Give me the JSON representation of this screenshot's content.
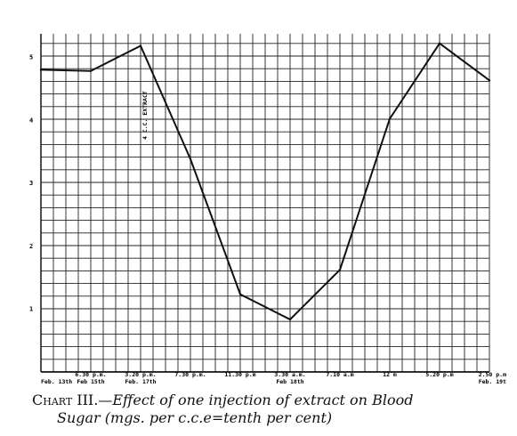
{
  "chart_data": {
    "type": "line",
    "title": "",
    "xlabel": "",
    "ylabel": "",
    "ylim": [
      0,
      5.5
    ],
    "y_ticks": [
      1,
      2,
      3,
      4,
      5
    ],
    "x_tick_labels": [
      {
        "top": "",
        "bottom": "Feb. 13th"
      },
      {
        "top": "6.30 p.m.",
        "bottom": "Feb 15th"
      },
      {
        "top": "3.20 p.m.",
        "bottom": "Feb. 17th"
      },
      {
        "top": "7.30 p.m.",
        "bottom": ""
      },
      {
        "top": "11.30 p.m",
        "bottom": ""
      },
      {
        "top": "3.30 a.m.",
        "bottom": "Feb 18th"
      },
      {
        "top": "7.10 a.m",
        "bottom": ""
      },
      {
        "top": "12 m",
        "bottom": ""
      },
      {
        "top": "5.20 p.m",
        "bottom": ""
      },
      {
        "top": "2.50 p.m",
        "bottom": "Feb. 19t"
      }
    ],
    "series": [
      {
        "values": [
          4.8,
          4.78,
          5.18,
          3.38,
          1.23,
          0.83,
          1.62,
          4.02,
          5.22,
          4.63
        ]
      }
    ],
    "annotation": "4 C.C. EXTRACT",
    "grid": true
  },
  "caption": {
    "label": "Chart III.",
    "text_line1": "—Effect of one  injection  of extract on  Blood",
    "text_line2": "Sugar  (mgs. per c.c.e=tenth per cent)"
  }
}
